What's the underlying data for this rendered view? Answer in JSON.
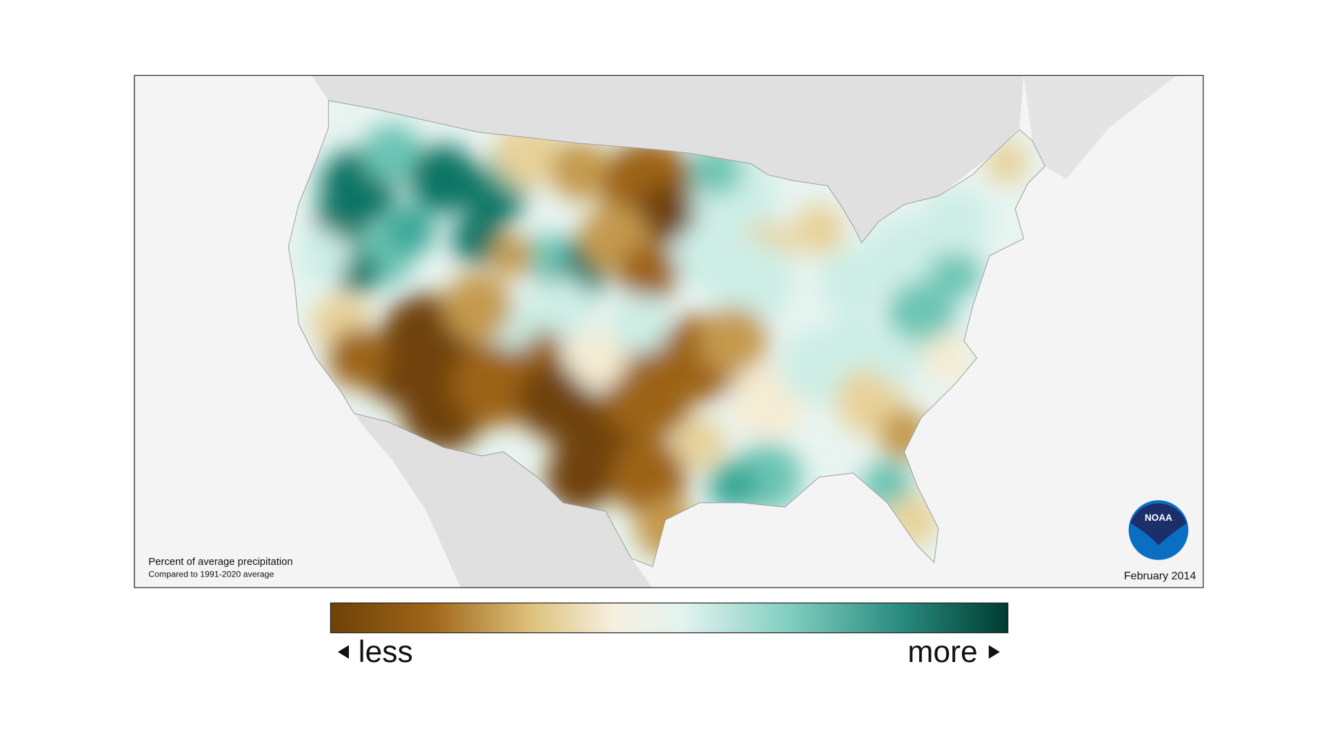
{
  "map": {
    "title": "Percent of average precipitation",
    "subtitle": "Compared to 1991-2020 average",
    "date": "February 2014"
  },
  "legend": {
    "less": "less",
    "more": "more"
  },
  "logo": {
    "text": "NOAA"
  }
}
